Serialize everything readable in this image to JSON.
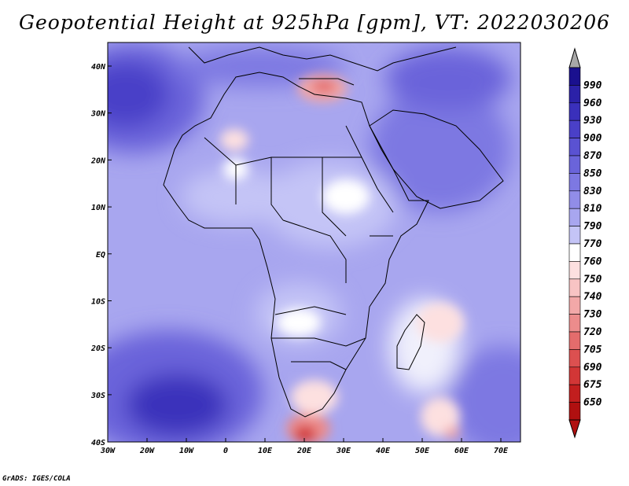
{
  "title": "Geopotential Height at 925hPa [gpm], VT: 2022030206",
  "footer": "GrADS: IGES/COLA",
  "lat_labels": [
    "40N",
    "30N",
    "20N",
    "10N",
    "EQ",
    "10S",
    "20S",
    "30S",
    "40S"
  ],
  "lon_labels": [
    "30W",
    "20W",
    "10W",
    "0",
    "10E",
    "20E",
    "30E",
    "40E",
    "50E",
    "60E",
    "70E"
  ],
  "colorbar": {
    "levels": [
      "990",
      "960",
      "930",
      "900",
      "870",
      "850",
      "830",
      "810",
      "790",
      "770",
      "760",
      "750",
      "740",
      "730",
      "720",
      "705",
      "690",
      "675",
      "650"
    ],
    "colors": [
      "#1a108f",
      "#2b21a8",
      "#3a30bb",
      "#4a40c8",
      "#5a52d2",
      "#6a64da",
      "#7d78e2",
      "#918de8",
      "#a8a6ef",
      "#c4c4f6",
      "#ffffff",
      "#fde0e0",
      "#f8c4c4",
      "#f2a8a8",
      "#ec8c8c",
      "#e46c6c",
      "#dc5050",
      "#d23636",
      "#c21e1e",
      "#b01010"
    ],
    "over_color": "#a8a8a8",
    "under_color": "#b01010"
  }
}
